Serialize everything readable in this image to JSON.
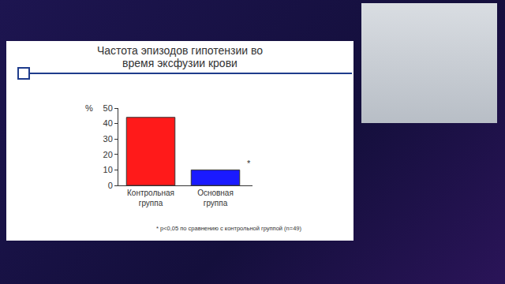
{
  "chart_data": {
    "type": "bar",
    "title": "Частота эпизодов гипотензии во время эксфузии крови",
    "y_label": "%",
    "categories": [
      "Контрольная группа",
      "Основная группа"
    ],
    "values": [
      44,
      10
    ],
    "colors": [
      "#ff1a1a",
      "#1a1aff"
    ],
    "ylim": [
      0,
      50
    ],
    "yticks": [
      0,
      10,
      20,
      30,
      40,
      50
    ],
    "grid": false,
    "annotations": [
      {
        "text": "*",
        "category": "Основная группа"
      }
    ],
    "footnote": "* p<0,05 по сравнению с контрольной группой (n=49)"
  }
}
